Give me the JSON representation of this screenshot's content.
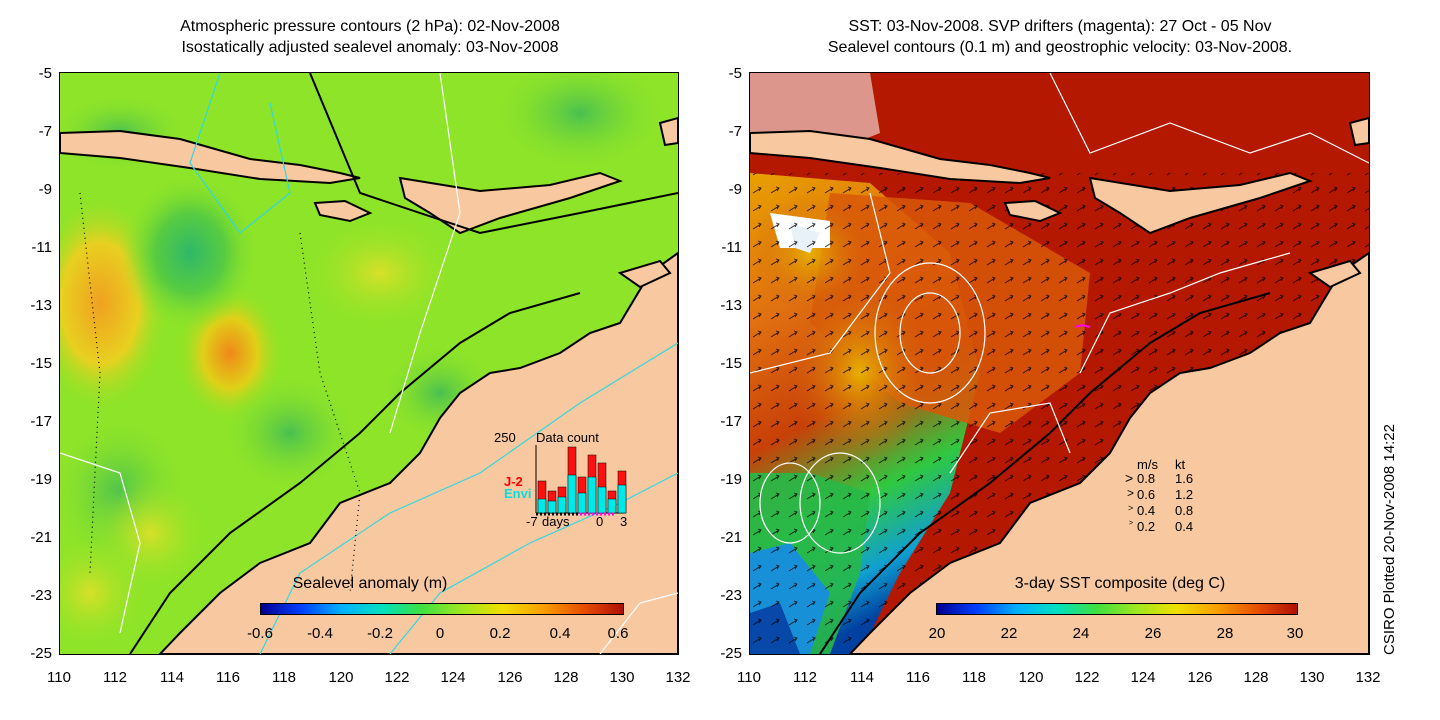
{
  "left_panel": {
    "title_line1": "Atmospheric pressure contours (2 hPa): 02-Nov-2008",
    "title_line2": "Isostatically adjusted sealevel anomaly: 03-Nov-2008",
    "colorbar_label": "Sealevel anomaly (m)",
    "colorbar_ticks": [
      "-0.6",
      "-0.4",
      "-0.2",
      "0",
      "0.2",
      "0.4",
      "0.6"
    ],
    "inset": {
      "max_label": "250",
      "title": "Data count",
      "legend_j2": "J-2",
      "legend_envi": "Envi",
      "x_left": "-7",
      "x_mid": "days",
      "x_zero": "0",
      "x_right": "3"
    }
  },
  "right_panel": {
    "title_line1": "SST: 03-Nov-2008. SVP drifters (magenta): 27 Oct - 05 Nov",
    "title_line2": "Sealevel contours (0.1 m) and geostrophic velocity: 03-Nov-2008.",
    "colorbar_label": "3-day SST composite (deg C)",
    "colorbar_ticks": [
      "20",
      "22",
      "24",
      "26",
      "28",
      "30"
    ],
    "velocity_legend": {
      "header_ms": "m/s",
      "header_kt": "kt",
      "rows": [
        {
          "ms": "0.8",
          "kt": "1.6"
        },
        {
          "ms": "0.6",
          "kt": "1.2"
        },
        {
          "ms": "0.4",
          "kt": "0.8"
        },
        {
          "ms": "0.2",
          "kt": "0.4"
        }
      ]
    }
  },
  "axes": {
    "y_ticks": [
      "-5",
      "-7",
      "-9",
      "-11",
      "-13",
      "-15",
      "-17",
      "-19",
      "-21",
      "-23",
      "-25"
    ],
    "x_ticks": [
      "110",
      "112",
      "114",
      "116",
      "118",
      "120",
      "122",
      "124",
      "126",
      "128",
      "130",
      "132"
    ]
  },
  "credit": "CSIRO Plotted 20-Nov-2008 14:22",
  "colors": {
    "land": "#f8c8a0",
    "sla_background": "#88e020",
    "sst_background": "#b81800",
    "j2": "#ff0000",
    "envi": "#00e0e0",
    "drifter": "#ff00ff"
  }
}
